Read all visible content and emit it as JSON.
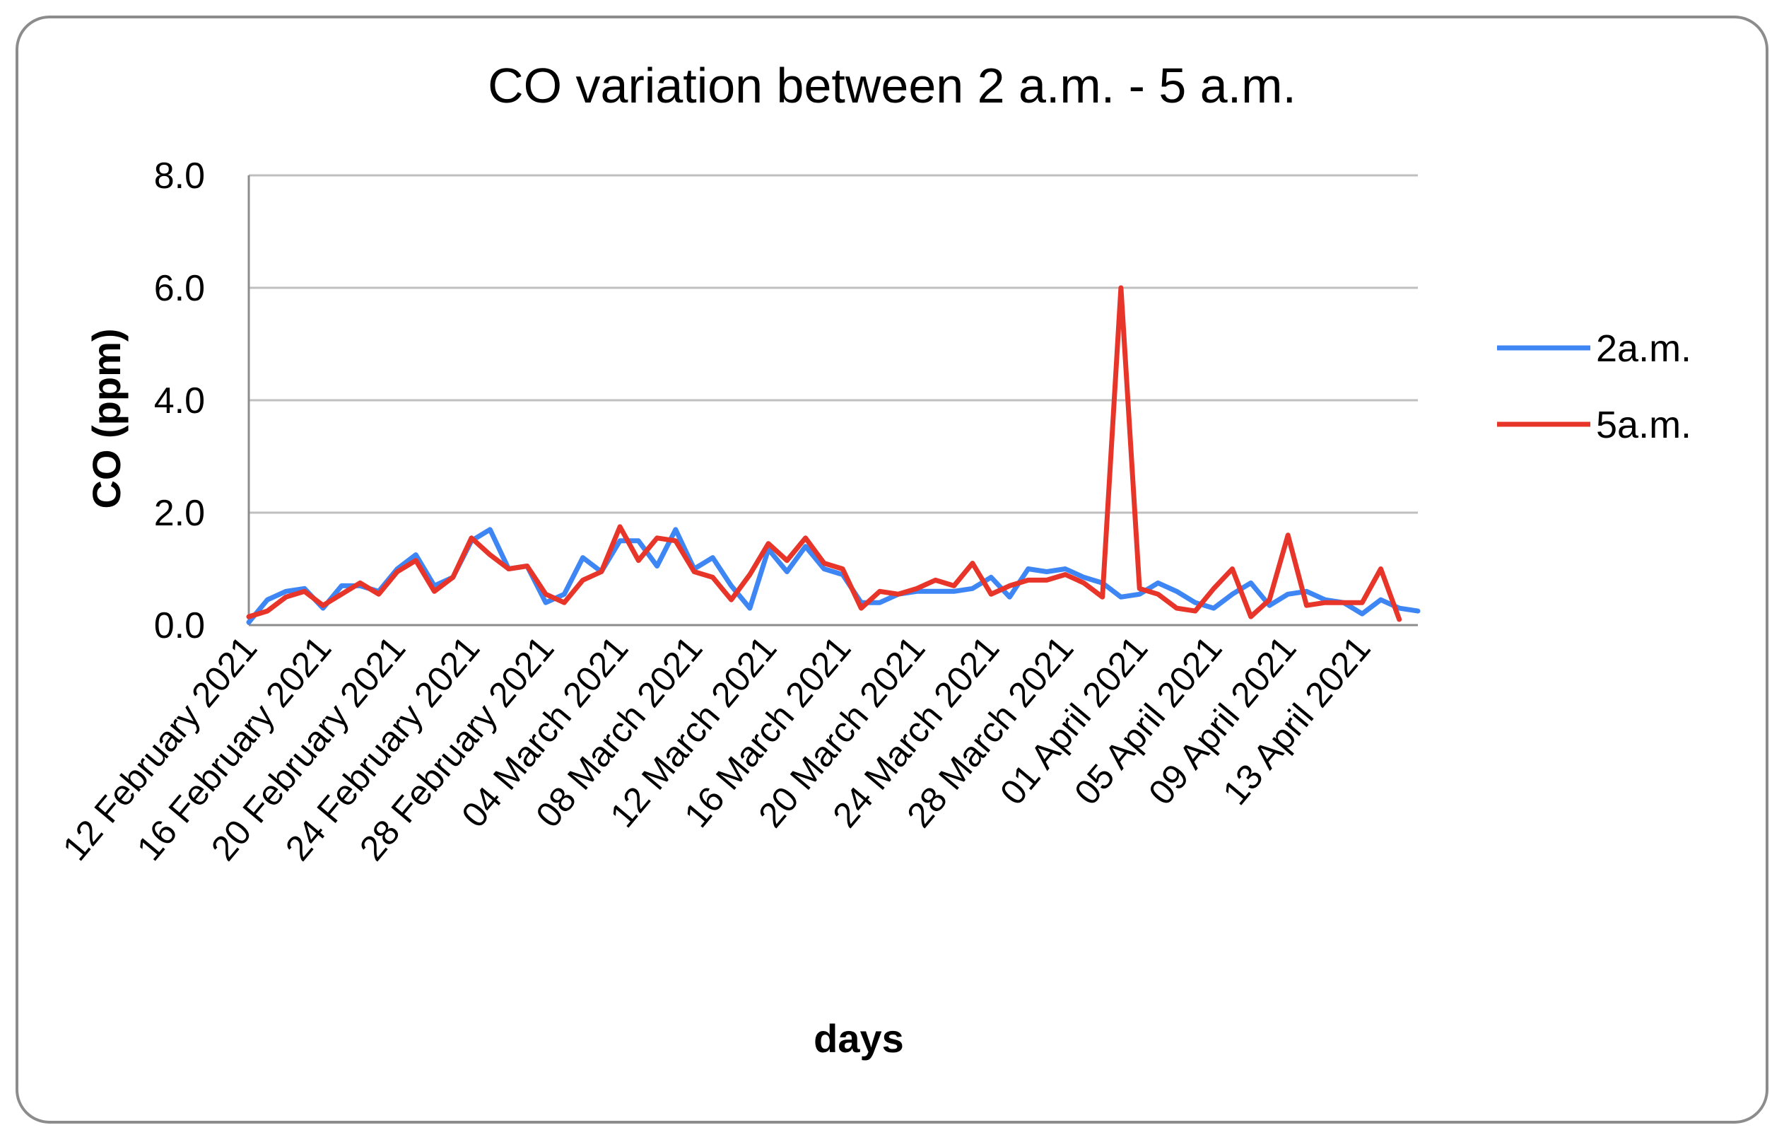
{
  "chart_data": {
    "type": "line",
    "title": "CO variation between 2 a.m. - 5 a.m.",
    "xlabel": "days",
    "ylabel": "CO (ppm)",
    "ylim": [
      0,
      8
    ],
    "yticks": [
      "0.0",
      "2.0",
      "4.0",
      "6.0",
      "8.0"
    ],
    "grid": true,
    "legend": "right",
    "x_tick_labels": [
      "12 February 2021",
      "16 February 2021",
      "20 February 2021",
      "24 February 2021",
      "28 February 2021",
      "04 March 2021",
      "08 March 2021",
      "12 March 2021",
      "16 March 2021",
      "20 March 2021",
      "24 March 2021",
      "28 March 2021",
      "01 April 2021",
      "05 April 2021",
      "09 April 2021",
      "13 April 2021"
    ],
    "x_tick_interval_days": 4,
    "series": [
      {
        "name": "2a.m.",
        "color": "#3f86f5",
        "values": [
          0.05,
          0.45,
          0.6,
          0.65,
          0.3,
          0.7,
          0.7,
          0.6,
          1.0,
          1.25,
          0.7,
          0.85,
          1.5,
          1.7,
          1.0,
          1.05,
          0.4,
          0.55,
          1.2,
          0.95,
          1.5,
          1.5,
          1.05,
          1.7,
          1.0,
          1.2,
          0.7,
          0.3,
          1.35,
          0.95,
          1.4,
          1.0,
          0.9,
          0.4,
          0.4,
          0.55,
          0.6,
          0.6,
          0.6,
          0.65,
          0.85,
          0.5,
          1.0,
          0.95,
          1.0,
          0.85,
          0.75,
          0.5,
          0.55,
          0.75,
          0.6,
          0.4,
          0.3,
          0.55,
          0.75,
          0.35,
          0.55,
          0.6,
          0.45,
          0.4,
          0.2,
          0.45,
          0.3,
          0.25
        ]
      },
      {
        "name": "5a.m.",
        "color": "#e8352a",
        "values": [
          0.15,
          0.25,
          0.5,
          0.6,
          0.35,
          0.55,
          0.75,
          0.55,
          0.95,
          1.15,
          0.6,
          0.85,
          1.55,
          1.25,
          1.0,
          1.05,
          0.55,
          0.4,
          0.8,
          0.95,
          1.75,
          1.15,
          1.55,
          1.5,
          0.95,
          0.85,
          0.45,
          0.9,
          1.45,
          1.15,
          1.55,
          1.1,
          1.0,
          0.3,
          0.6,
          0.55,
          0.65,
          0.8,
          0.7,
          1.1,
          0.55,
          0.7,
          0.8,
          0.8,
          0.9,
          0.75,
          0.5,
          6.0,
          0.65,
          0.55,
          0.3,
          0.25,
          0.65,
          1.0,
          0.15,
          0.45,
          1.6,
          0.35,
          0.4,
          0.4,
          0.4,
          1.0,
          0.1
        ]
      }
    ]
  }
}
